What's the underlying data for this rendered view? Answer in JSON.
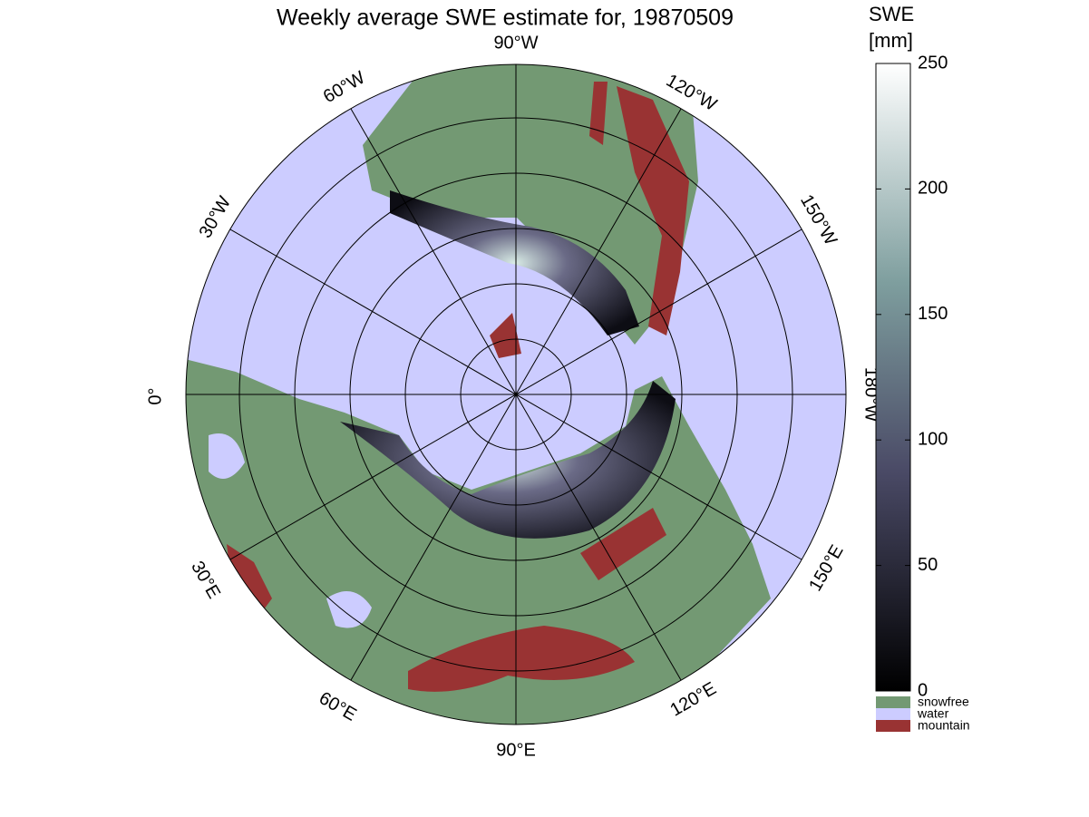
{
  "title": "Weekly average SWE estimate for, 19870509",
  "longitude_labels": [
    "90°W",
    "120°W",
    "150°W",
    "180°W",
    "150°E",
    "120°E",
    "90°E",
    "60°E",
    "30°E",
    "0°",
    "30°W",
    "60°W"
  ],
  "colorbar": {
    "title": [
      "SWE",
      "[mm]"
    ],
    "lim": [
      0,
      250
    ],
    "ticks": [
      0,
      50,
      100,
      150,
      200,
      250
    ]
  },
  "legend": [
    {
      "name": "snowfree",
      "color": "#739973"
    },
    {
      "name": "water",
      "color": "#ccccff"
    },
    {
      "name": "mountain",
      "color": "#993333"
    }
  ]
}
